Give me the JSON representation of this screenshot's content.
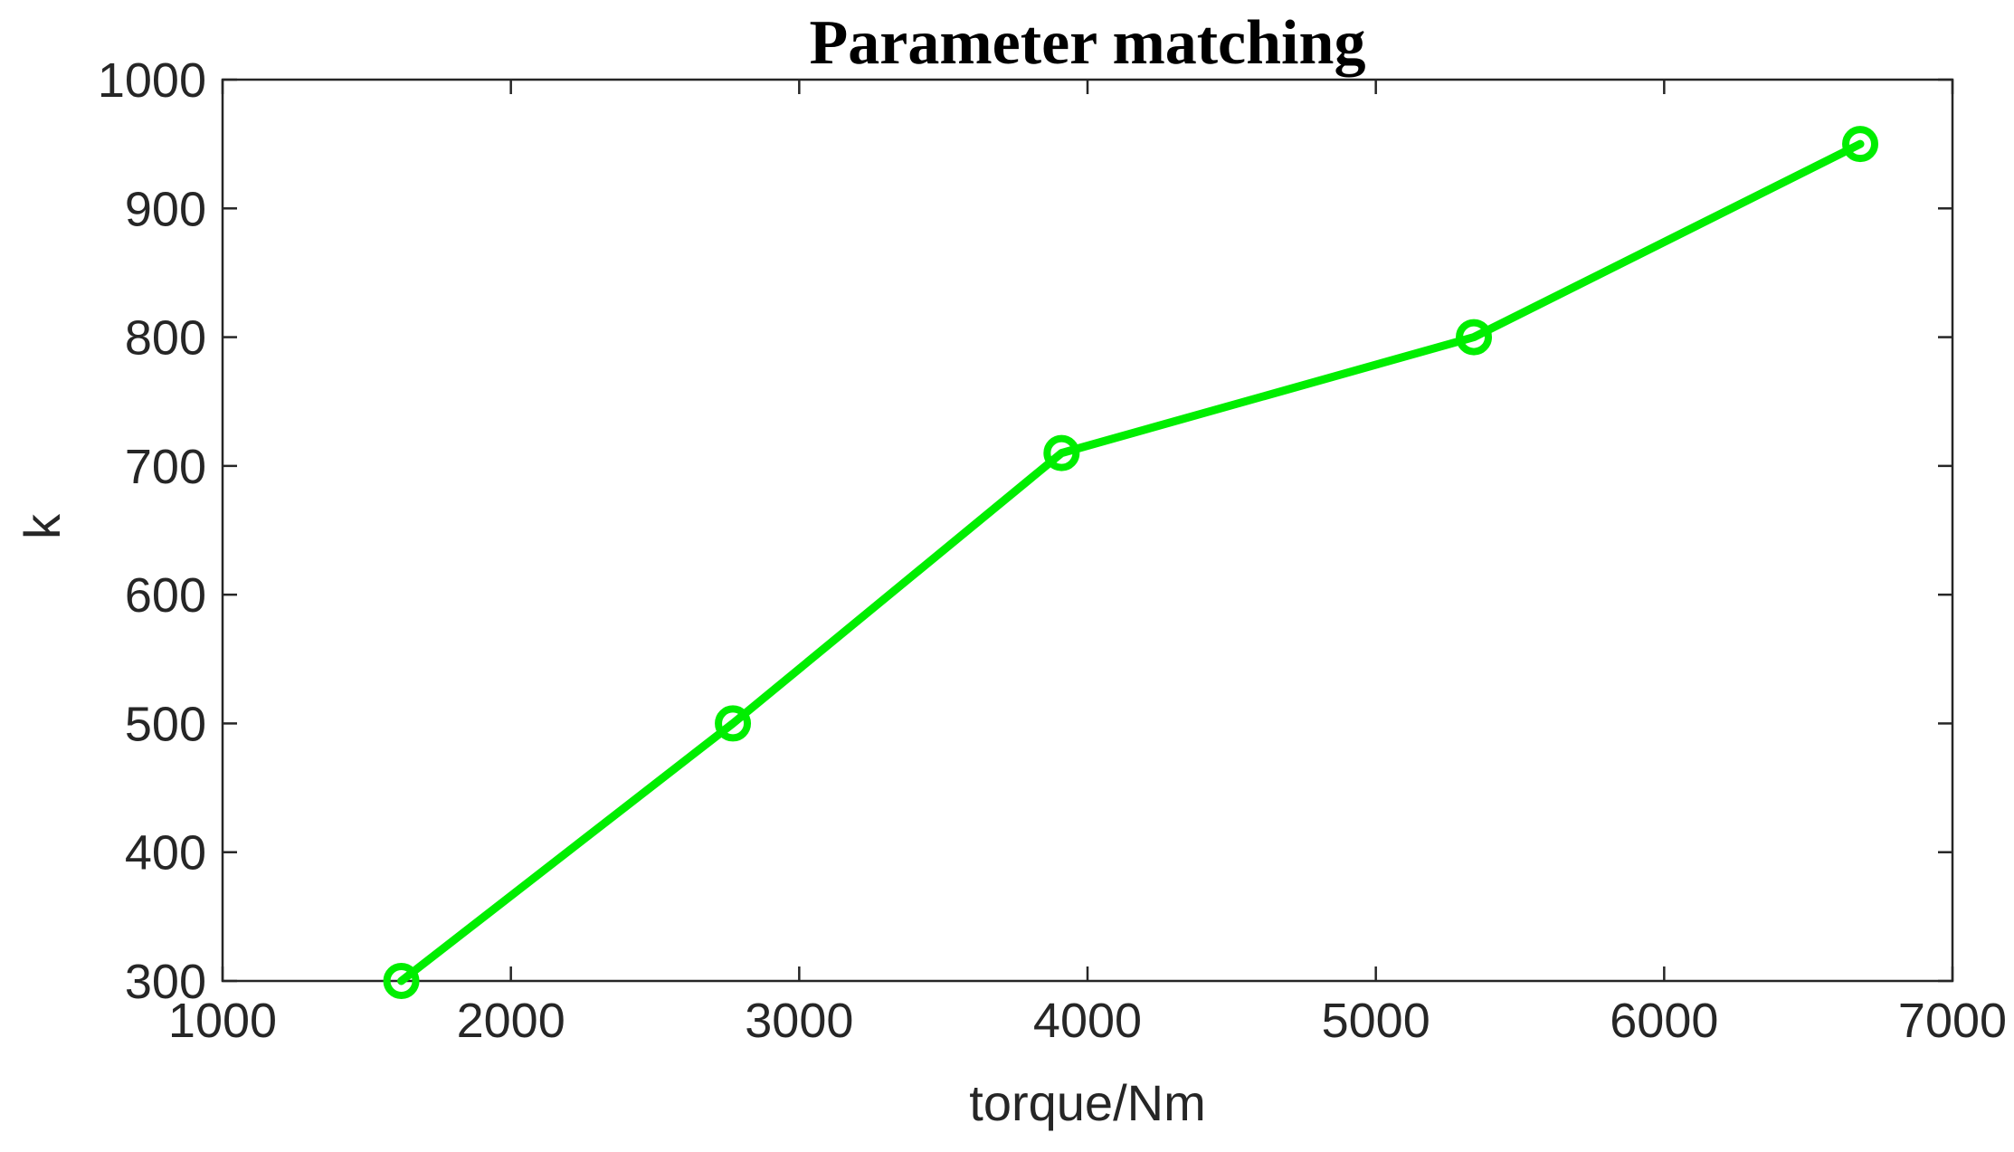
{
  "chart_data": {
    "type": "line",
    "title": "Parameter matching",
    "xlabel": "torque/Nm",
    "ylabel": "k",
    "xlim": [
      1000,
      7000
    ],
    "ylim": [
      300,
      1000
    ],
    "xticks": [
      1000,
      2000,
      3000,
      4000,
      5000,
      6000,
      7000
    ],
    "yticks": [
      300,
      400,
      500,
      600,
      700,
      800,
      900,
      1000
    ],
    "xtick_labels": [
      "1000",
      "2000",
      "3000",
      "4000",
      "5000",
      "6000",
      "7000"
    ],
    "ytick_labels": [
      "300",
      "400",
      "500",
      "600",
      "700",
      "800",
      "900",
      "1000"
    ],
    "grid": false,
    "series": [
      {
        "color": "#00ee00",
        "marker": "circle",
        "x": [
          1620,
          2770,
          3910,
          5340,
          6680
        ],
        "y": [
          300,
          500,
          710,
          800,
          950
        ]
      }
    ]
  }
}
